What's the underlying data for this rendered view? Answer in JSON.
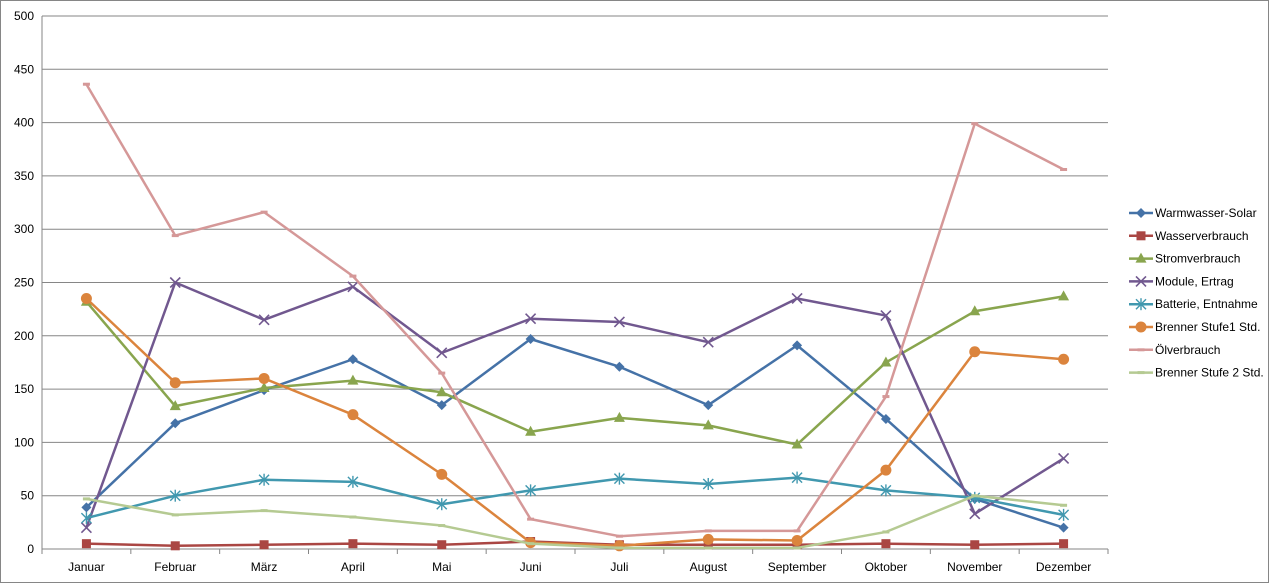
{
  "chart_data": {
    "type": "line",
    "title": "",
    "xlabel": "",
    "ylabel": "",
    "ylim": [
      0,
      500
    ],
    "y_ticks": [
      "0",
      "50",
      "100",
      "150",
      "200",
      "250",
      "300",
      "350",
      "400",
      "450",
      "500"
    ],
    "grid": true,
    "legend_position": "right",
    "categories": [
      "Januar",
      "Februar",
      "März",
      "April",
      "Mai",
      "Juni",
      "Juli",
      "August",
      "September",
      "Oktober",
      "November",
      "Dezember"
    ],
    "series": [
      {
        "name": "Warmwasser-Solar",
        "color": "#4572a7",
        "marker": "diamond",
        "values": [
          39,
          118,
          149,
          178,
          135,
          197,
          171,
          135,
          191,
          122,
          47,
          20
        ]
      },
      {
        "name": "Wasserverbrauch",
        "color": "#aa4643",
        "marker": "square",
        "values": [
          5,
          3,
          4,
          5,
          4,
          7,
          4,
          4,
          4,
          5,
          4,
          5
        ]
      },
      {
        "name": "Stromverbrauch",
        "color": "#89a54e",
        "marker": "triangle",
        "values": [
          232,
          134,
          151,
          158,
          147,
          110,
          123,
          116,
          98,
          175,
          223,
          237
        ]
      },
      {
        "name": "Module, Ertrag",
        "color": "#71588f",
        "marker": "x",
        "values": [
          20,
          250,
          215,
          246,
          184,
          216,
          213,
          194,
          235,
          219,
          33,
          85
        ]
      },
      {
        "name": "Batterie, Entnahme",
        "color": "#4198af",
        "marker": "asterisk",
        "values": [
          29,
          50,
          65,
          63,
          42,
          55,
          66,
          61,
          67,
          55,
          48,
          32
        ]
      },
      {
        "name": "Brenner Stufe1 Std.",
        "color": "#db843d",
        "marker": "circle",
        "values": [
          235,
          156,
          160,
          126,
          70,
          6,
          3,
          9,
          8,
          74,
          185,
          178
        ]
      },
      {
        "name": "Ölverbrauch",
        "color": "#d59898",
        "marker": "dash",
        "values": [
          436,
          294,
          316,
          256,
          165,
          28,
          12,
          17,
          17,
          143,
          399,
          356
        ]
      },
      {
        "name": "Brenner Stufe 2 Std.",
        "color": "#b5ca92",
        "marker": "dash",
        "values": [
          47,
          32,
          36,
          30,
          22,
          5,
          1,
          1,
          1,
          16,
          50,
          41
        ]
      }
    ]
  }
}
